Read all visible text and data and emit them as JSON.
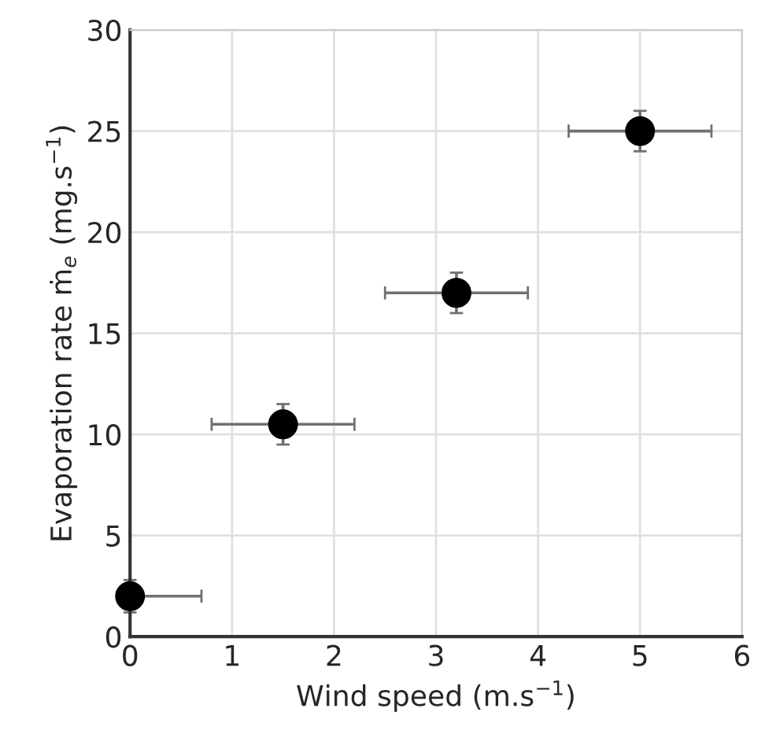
{
  "chart_data": {
    "type": "scatter",
    "xlabel": "Wind speed (m.s$^{−1}$)",
    "ylabel": "Evaporation rate ṁ$_{e}$ (mg.s$^{−1}$)",
    "x": [
      0,
      1.5,
      3.2,
      5
    ],
    "series": [
      {
        "color": "#000000",
        "values": [
          2,
          10.5,
          17,
          25
        ],
        "errors": [
          0.8,
          1,
          1,
          1
        ],
        "xerrors": [
          [
            0,
            0.7
          ],
          0.7,
          0.7,
          0.7
        ]
      }
    ],
    "xlim": [
      0,
      6
    ],
    "xticks": [
      0,
      1,
      2,
      3,
      4,
      5,
      6
    ],
    "ylim": [
      0,
      30
    ],
    "yticks": [
      0,
      5,
      10,
      15,
      20,
      25,
      30
    ],
    "grid": true,
    "marker": "circle"
  }
}
